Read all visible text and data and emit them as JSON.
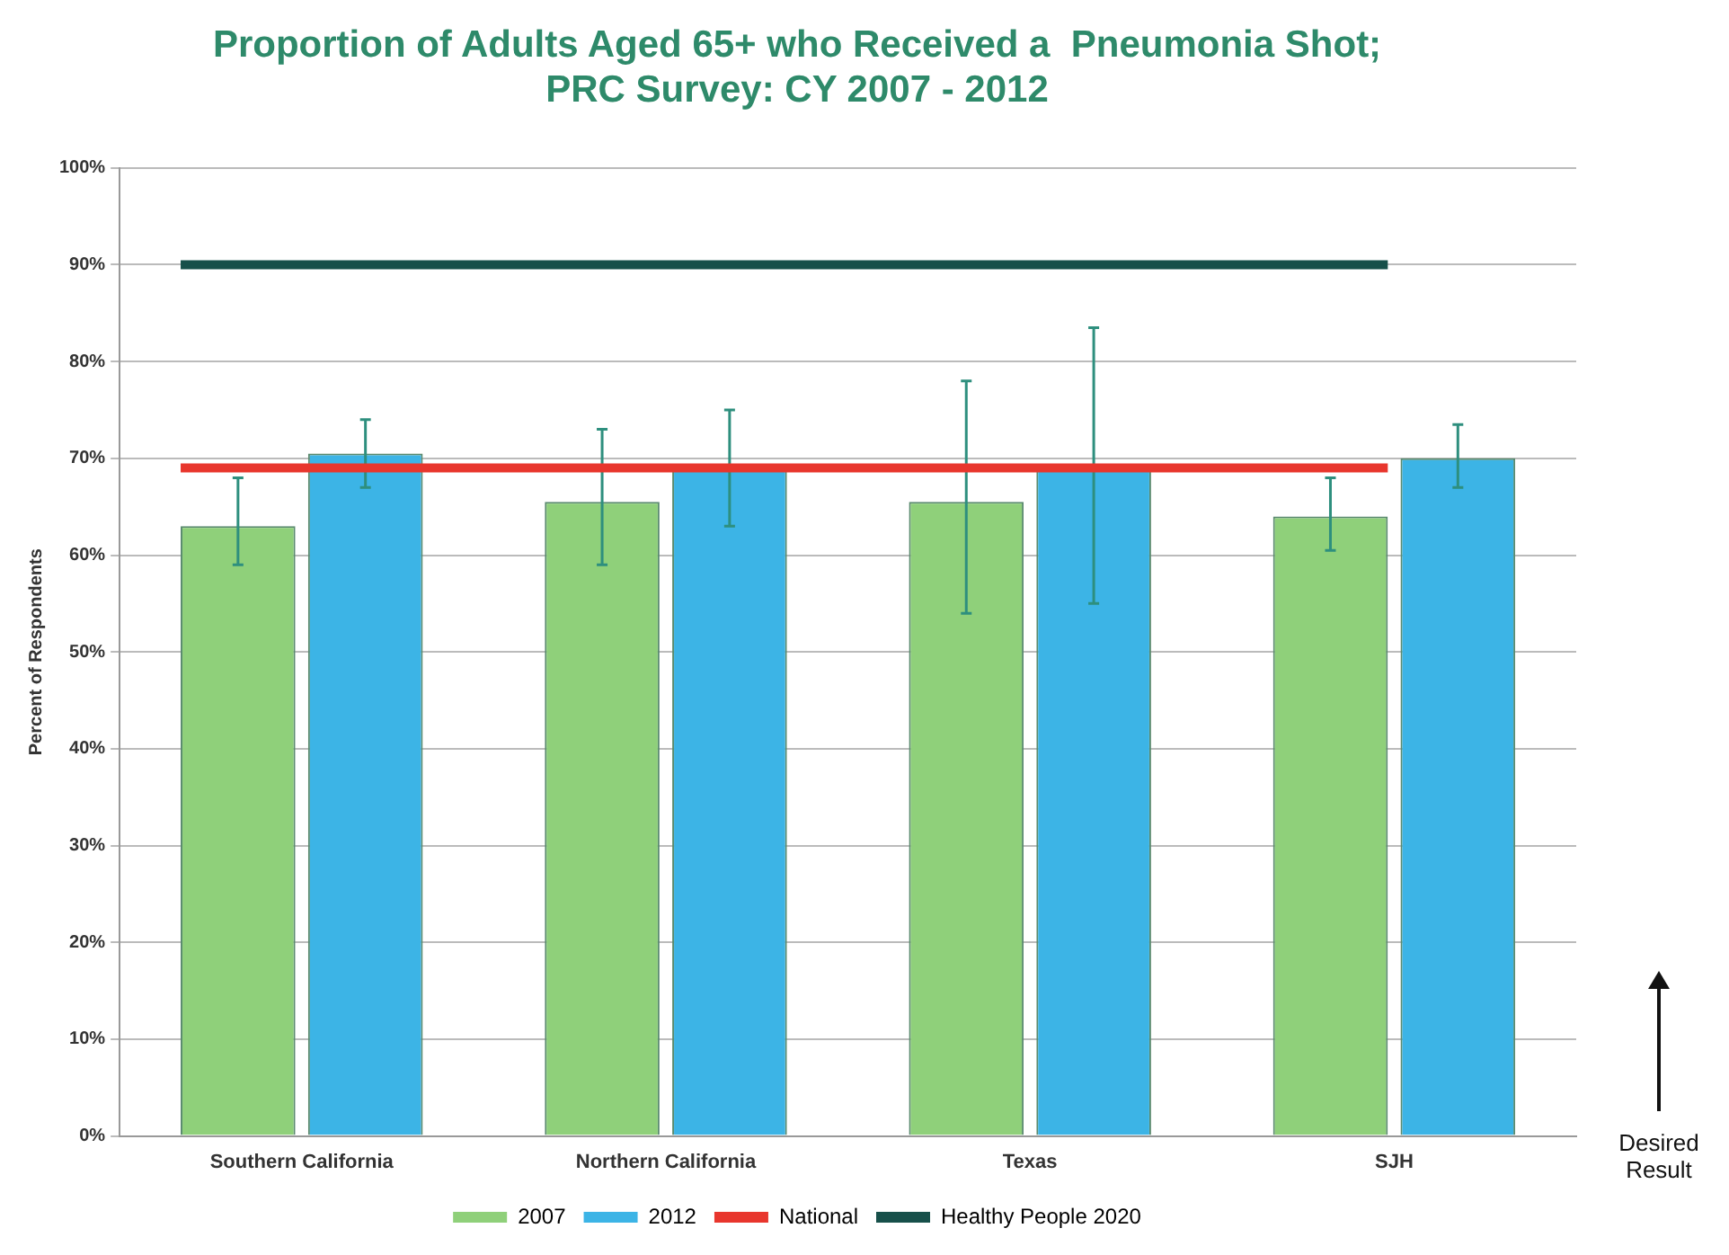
{
  "chart_data": {
    "type": "bar",
    "title": "Proportion of Adults Aged 65+ who Received a  Pneumonia Shot;\nPRC Survey: CY 2007 - 2012",
    "ylabel": "Percent of Respondents",
    "categories": [
      "Southern California",
      "Northern California",
      "Texas",
      "SJH"
    ],
    "series": [
      {
        "name": "2007",
        "color": "#8fd07a",
        "values": [
          63,
          65.5,
          65.5,
          64
        ],
        "errors": [
          [
            59,
            68
          ],
          [
            59,
            73
          ],
          [
            54,
            78
          ],
          [
            60.5,
            68
          ]
        ]
      },
      {
        "name": "2012",
        "color": "#3cb4e6",
        "values": [
          70.5,
          69,
          69,
          70
        ],
        "errors": [
          [
            67,
            74
          ],
          [
            63,
            75
          ],
          [
            55,
            83.5
          ],
          [
            67,
            73.5
          ]
        ]
      }
    ],
    "ref_lines": [
      {
        "axis": "y",
        "value": 69,
        "label": "National",
        "color": "#e8362d"
      },
      {
        "axis": "y",
        "value": 90,
        "label": "Healthy People 2020",
        "color": "#17504a"
      }
    ],
    "ylim": [
      0,
      100
    ],
    "yticks": [
      {
        "value": 0,
        "label": "0%"
      },
      {
        "value": 10,
        "label": "10%"
      },
      {
        "value": 20,
        "label": "20%"
      },
      {
        "value": 30,
        "label": "30%"
      },
      {
        "value": 40,
        "label": "40%"
      },
      {
        "value": 50,
        "label": "50%"
      },
      {
        "value": 60,
        "label": "60%"
      },
      {
        "value": 70,
        "label": "70%"
      },
      {
        "value": 80,
        "label": "80%"
      },
      {
        "value": 90,
        "label": "90%"
      },
      {
        "value": 100,
        "label": "100%"
      }
    ],
    "grid": "y",
    "legend": "bottom",
    "annotations": [
      "Desired\nResult"
    ]
  }
}
